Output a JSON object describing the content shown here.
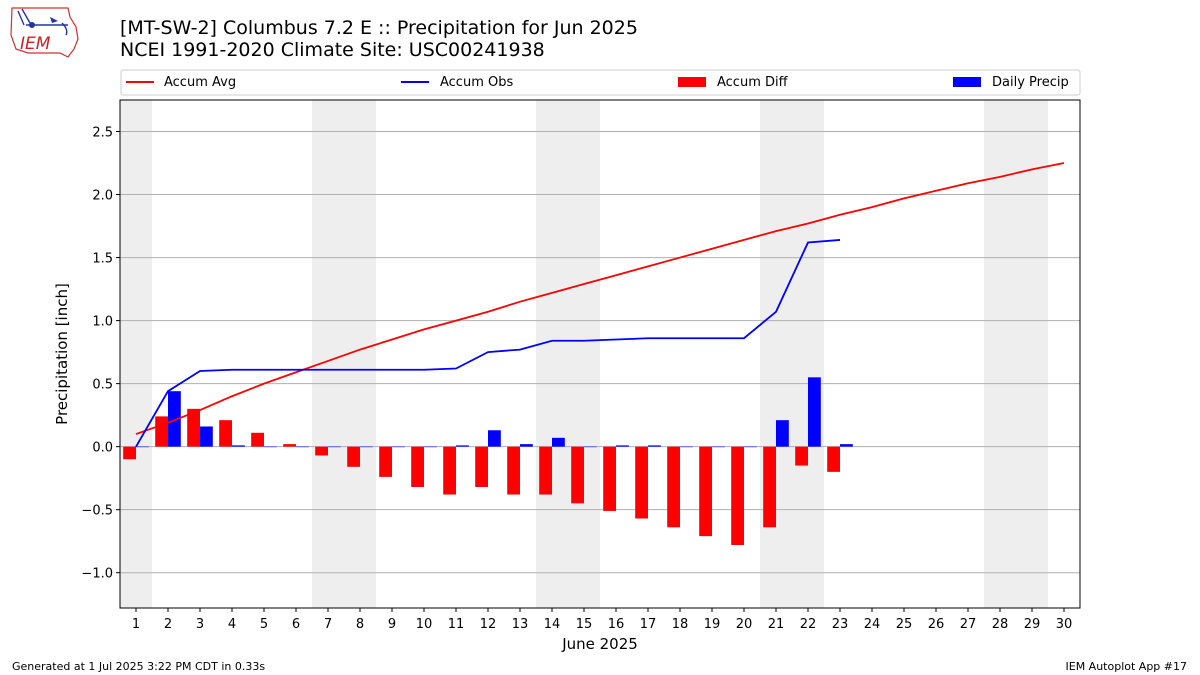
{
  "header": {
    "title_line1": "[MT-SW-2] Columbus 7.2 E :: Precipitation for Jun 2025",
    "title_line2": "NCEI 1991-2020 Climate Site: USC00241938"
  },
  "logo": {
    "text": "IEM"
  },
  "footer": {
    "generated": "Generated at 1 Jul 2025 3:22 PM CDT in 0.33s",
    "app": "IEM Autoplot App #17"
  },
  "colors": {
    "avg": "#ff0000",
    "obs": "#0000ff",
    "diff": "#ff0000",
    "daily": "#0000ff",
    "weekend": "#eeeeee",
    "grid": "#b0b0b0"
  },
  "chart_data": {
    "type": "bar",
    "xlabel": "June 2025",
    "ylabel": "Precipitation [inch]",
    "ylim": [
      -1.28,
      2.75
    ],
    "yticks": [
      -1.0,
      -0.5,
      0.0,
      0.5,
      1.0,
      1.5,
      2.0,
      2.5
    ],
    "ytick_labels": [
      "−1.0",
      "−0.5",
      "0.0",
      "0.5",
      "1.0",
      "1.5",
      "2.0",
      "2.5"
    ],
    "days": [
      1,
      2,
      3,
      4,
      5,
      6,
      7,
      8,
      9,
      10,
      11,
      12,
      13,
      14,
      15,
      16,
      17,
      18,
      19,
      20,
      21,
      22,
      23,
      24,
      25,
      26,
      27,
      28,
      29,
      30
    ],
    "weekend_days": [
      1,
      7,
      8,
      14,
      15,
      21,
      22,
      28,
      29
    ],
    "grid": "horizontal",
    "legend": {
      "placement": "top",
      "entries": [
        "Accum Avg",
        "Accum Obs",
        "Accum Diff",
        "Daily Precip"
      ]
    },
    "series": [
      {
        "name": "Accum Avg",
        "kind": "line",
        "values": [
          0.1,
          0.19,
          0.29,
          0.4,
          0.5,
          0.59,
          0.68,
          0.77,
          0.85,
          0.93,
          1.0,
          1.07,
          1.15,
          1.22,
          1.29,
          1.36,
          1.43,
          1.5,
          1.57,
          1.64,
          1.71,
          1.77,
          1.84,
          1.9,
          1.97,
          2.03,
          2.09,
          2.14,
          2.2,
          2.25
        ]
      },
      {
        "name": "Accum Obs",
        "kind": "line",
        "values": [
          0.0,
          0.44,
          0.6,
          0.61,
          0.61,
          0.61,
          0.61,
          0.61,
          0.61,
          0.61,
          0.62,
          0.75,
          0.77,
          0.84,
          0.84,
          0.85,
          0.86,
          0.86,
          0.86,
          0.86,
          1.07,
          1.62,
          1.64
        ]
      },
      {
        "name": "Accum Diff",
        "kind": "bar",
        "values": [
          -0.1,
          0.24,
          0.3,
          0.21,
          0.11,
          0.02,
          -0.07,
          -0.16,
          -0.24,
          -0.32,
          -0.38,
          -0.32,
          -0.38,
          -0.38,
          -0.45,
          -0.51,
          -0.57,
          -0.64,
          -0.71,
          -0.78,
          -0.64,
          -0.15,
          -0.2
        ]
      },
      {
        "name": "Daily Precip",
        "kind": "bar",
        "values": [
          0.0,
          0.44,
          0.16,
          0.01,
          0.0,
          0.0,
          0.0,
          0.0,
          0.0,
          0.0,
          0.01,
          0.13,
          0.02,
          0.07,
          0.0,
          0.01,
          0.01,
          0.0,
          0.0,
          0.0,
          0.21,
          0.55,
          0.02
        ]
      }
    ]
  }
}
